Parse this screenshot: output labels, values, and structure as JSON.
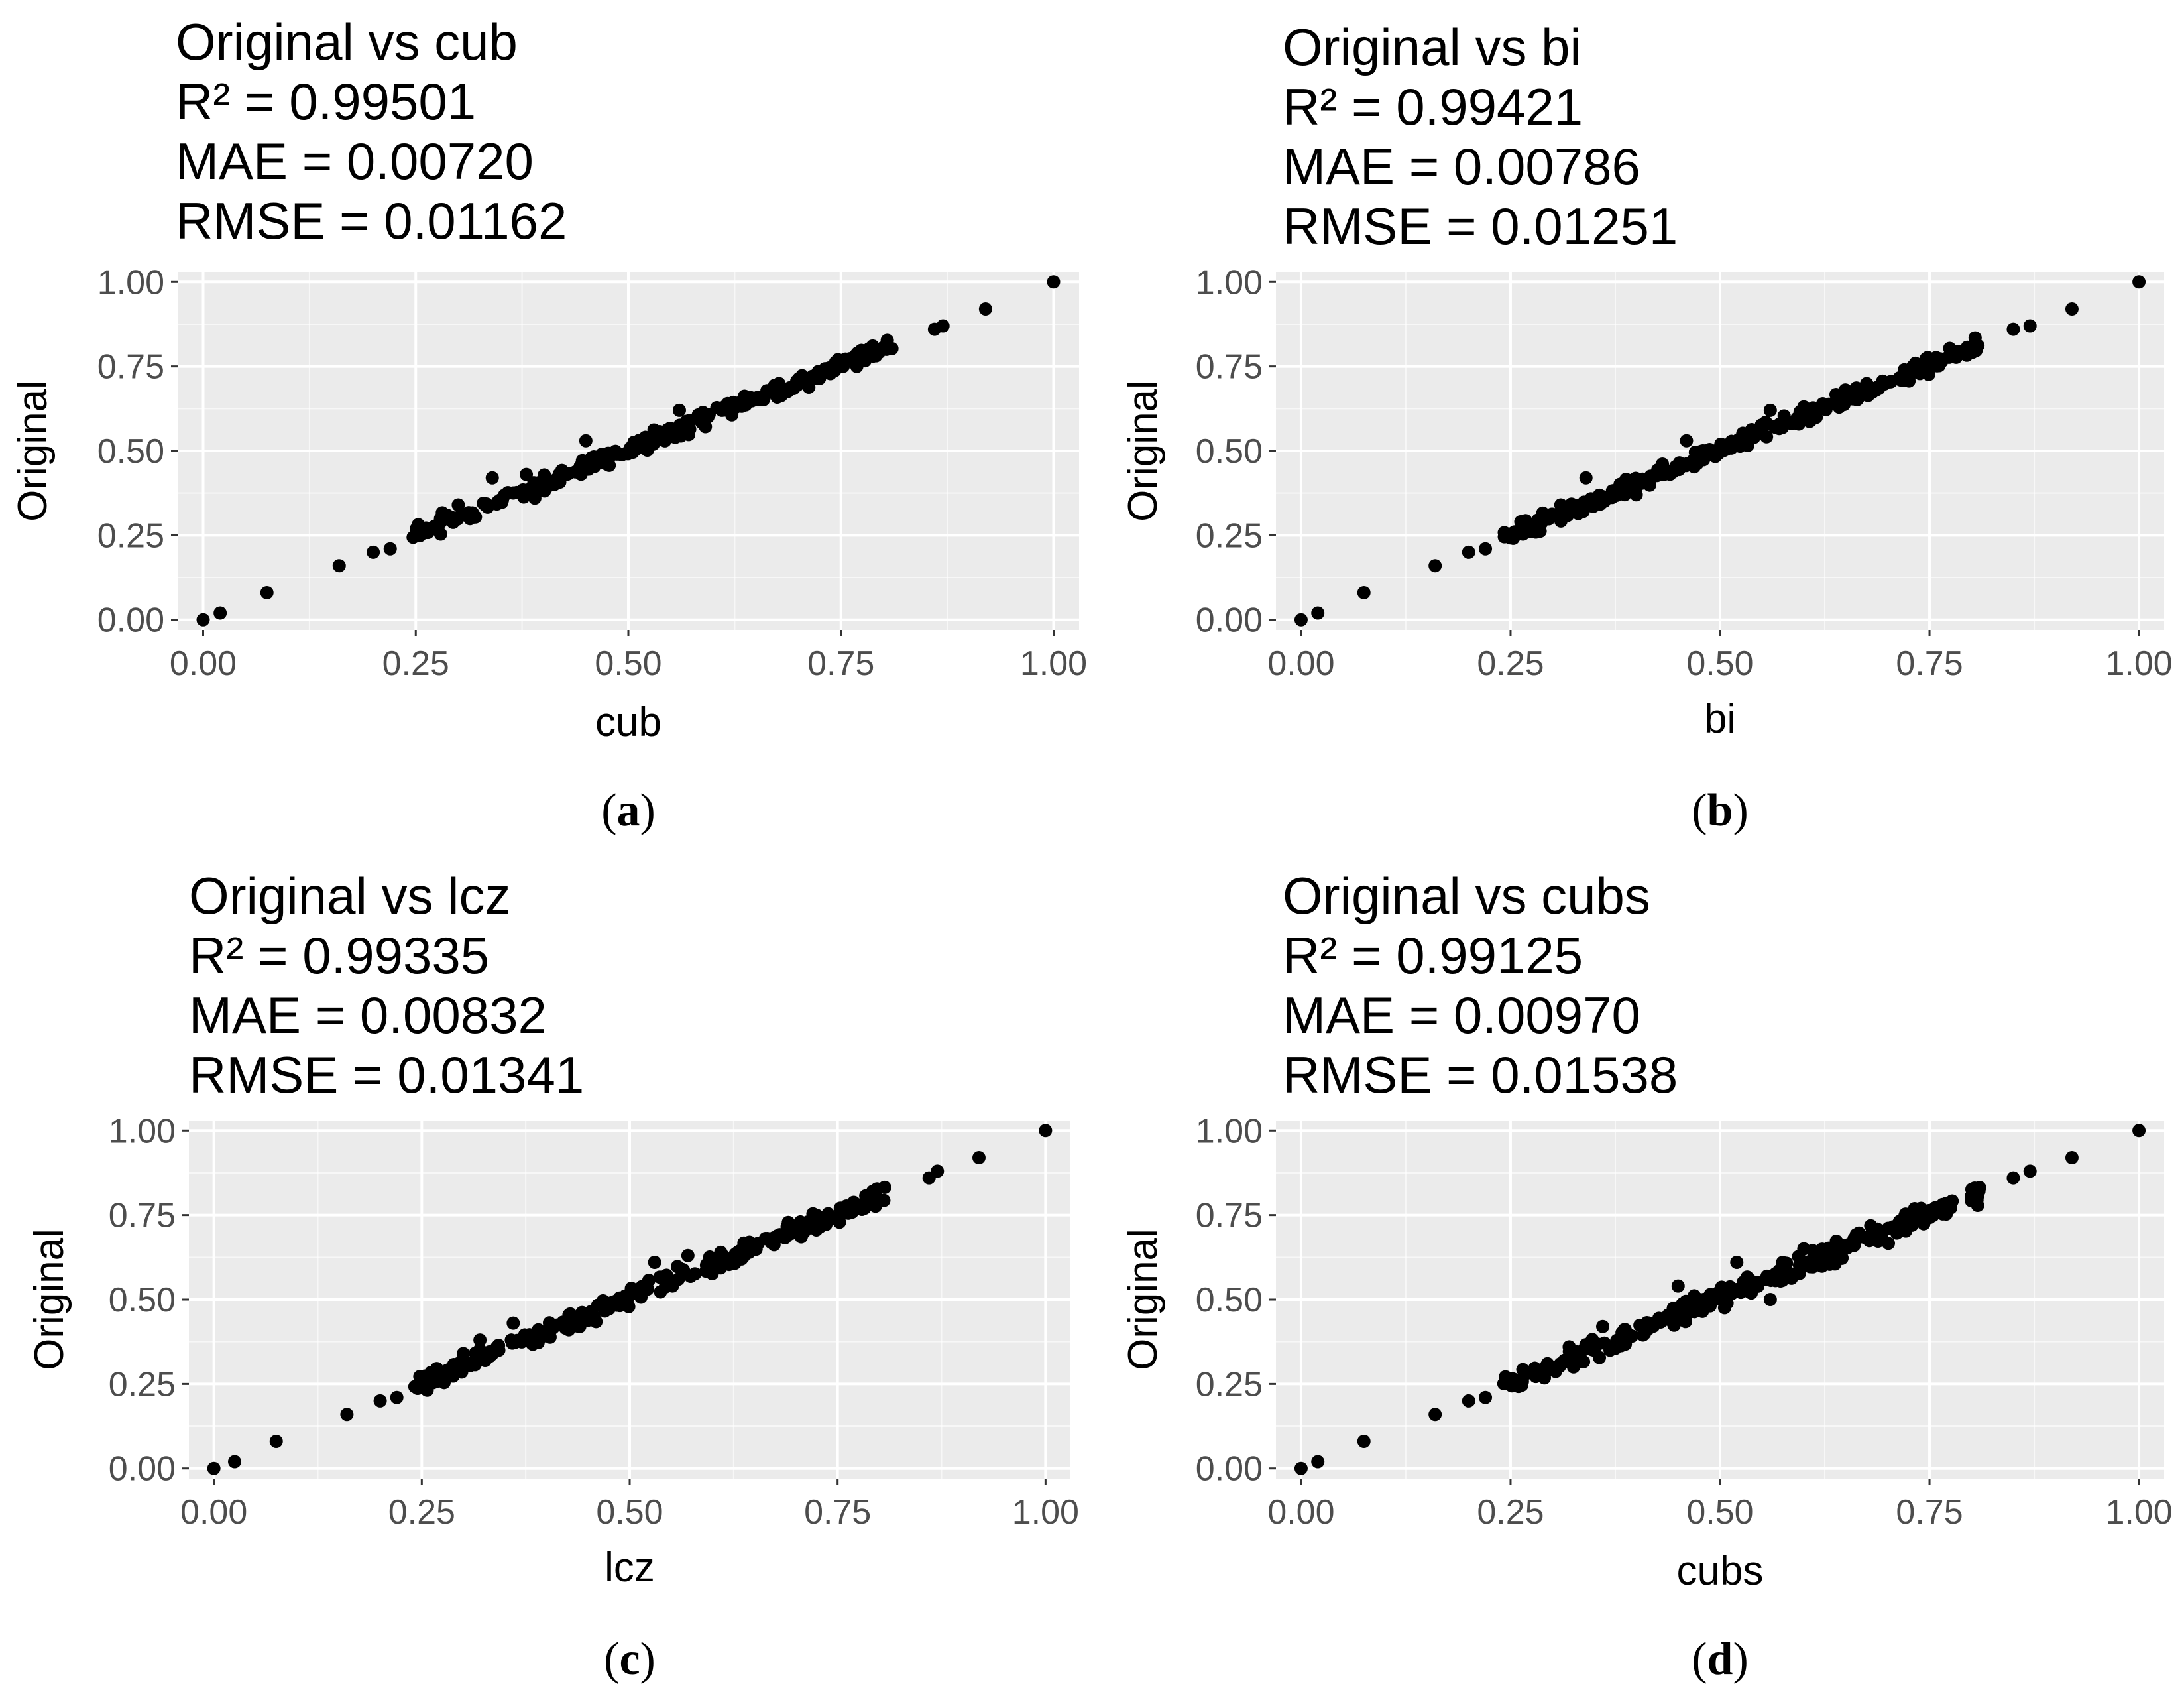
{
  "chart_data": [
    {
      "type": "scatter",
      "title": "Original vs cub",
      "stats": {
        "r2": "R² = 0.99501",
        "mae": "MAE = 0.00720",
        "rmse": "RMSE = 0.01162"
      },
      "xlabel": "cub",
      "ylabel": "Original",
      "xlim": [
        -0.03,
        1.03
      ],
      "ylim": [
        -0.03,
        1.03
      ],
      "ticks": [
        0,
        0.25,
        0.5,
        0.75,
        1.0
      ],
      "tick_labels": [
        "0.00",
        "0.25",
        "0.50",
        "0.75",
        "1.00"
      ],
      "caption_letter": "a",
      "seed": 11,
      "n_points": 260,
      "noise": 0.011,
      "outliers": [
        [
          0.38,
          0.43
        ],
        [
          0.34,
          0.42
        ],
        [
          0.45,
          0.53
        ],
        [
          0.56,
          0.62
        ],
        [
          0.61,
          0.62
        ],
        [
          0.66,
          0.66
        ],
        [
          0.39,
          0.36
        ],
        [
          0.3,
          0.34
        ]
      ],
      "anchor_points": [
        [
          0.0,
          0.0
        ],
        [
          0.02,
          0.02
        ],
        [
          0.075,
          0.08
        ],
        [
          0.16,
          0.16
        ],
        [
          0.2,
          0.2
        ],
        [
          0.22,
          0.21
        ],
        [
          0.86,
          0.86
        ],
        [
          0.87,
          0.87
        ],
        [
          0.92,
          0.92
        ],
        [
          1.0,
          1.0
        ]
      ]
    },
    {
      "type": "scatter",
      "title": "Original vs bi",
      "stats": {
        "r2": "R² = 0.99421",
        "mae": "MAE = 0.00786",
        "rmse": "RMSE = 0.01251"
      },
      "xlabel": "bi",
      "ylabel": "Original",
      "xlim": [
        -0.03,
        1.03
      ],
      "ylim": [
        -0.03,
        1.03
      ],
      "ticks": [
        0,
        0.25,
        0.5,
        0.75,
        1.0
      ],
      "tick_labels": [
        "0.00",
        "0.25",
        "0.50",
        "0.75",
        "1.00"
      ],
      "caption_letter": "b",
      "seed": 23,
      "n_points": 260,
      "noise": 0.012,
      "outliers": [
        [
          0.34,
          0.42
        ],
        [
          0.46,
          0.53
        ],
        [
          0.56,
          0.62
        ],
        [
          0.6,
          0.63
        ],
        [
          0.72,
          0.74
        ],
        [
          0.4,
          0.37
        ],
        [
          0.31,
          0.34
        ]
      ],
      "anchor_points": [
        [
          0.0,
          0.0
        ],
        [
          0.02,
          0.02
        ],
        [
          0.075,
          0.08
        ],
        [
          0.16,
          0.16
        ],
        [
          0.2,
          0.2
        ],
        [
          0.22,
          0.21
        ],
        [
          0.85,
          0.86
        ],
        [
          0.87,
          0.87
        ],
        [
          0.92,
          0.92
        ],
        [
          1.0,
          1.0
        ]
      ]
    },
    {
      "type": "scatter",
      "title": "Original vs lcz",
      "stats": {
        "r2": "R² = 0.99335",
        "mae": "MAE = 0.00832",
        "rmse": "RMSE = 0.01341"
      },
      "xlabel": "lcz",
      "ylabel": "Original",
      "xlim": [
        -0.03,
        1.03
      ],
      "ylim": [
        -0.03,
        1.03
      ],
      "ticks": [
        0,
        0.25,
        0.5,
        0.75,
        1.0
      ],
      "tick_labels": [
        "0.00",
        "0.25",
        "0.50",
        "0.75",
        "1.00"
      ],
      "caption_letter": "c",
      "seed": 37,
      "n_points": 260,
      "noise": 0.013,
      "outliers": [
        [
          0.36,
          0.43
        ],
        [
          0.32,
          0.38
        ],
        [
          0.53,
          0.61
        ],
        [
          0.57,
          0.63
        ],
        [
          0.63,
          0.64
        ],
        [
          0.44,
          0.42
        ],
        [
          0.3,
          0.34
        ]
      ],
      "anchor_points": [
        [
          0.0,
          0.0
        ],
        [
          0.025,
          0.02
        ],
        [
          0.075,
          0.08
        ],
        [
          0.16,
          0.16
        ],
        [
          0.2,
          0.2
        ],
        [
          0.22,
          0.21
        ],
        [
          0.86,
          0.86
        ],
        [
          0.87,
          0.88
        ],
        [
          0.92,
          0.92
        ],
        [
          1.0,
          1.0
        ]
      ]
    },
    {
      "type": "scatter",
      "title": "Original vs cubs",
      "stats": {
        "r2": "R² = 0.99125",
        "mae": "MAE = 0.00970",
        "rmse": "RMSE = 0.01538"
      },
      "xlabel": "cubs",
      "ylabel": "Original",
      "xlim": [
        -0.03,
        1.03
      ],
      "ylim": [
        -0.03,
        1.03
      ],
      "ticks": [
        0,
        0.25,
        0.5,
        0.75,
        1.0
      ],
      "tick_labels": [
        "0.00",
        "0.25",
        "0.50",
        "0.75",
        "1.00"
      ],
      "caption_letter": "d",
      "seed": 51,
      "n_points": 260,
      "noise": 0.015,
      "outliers": [
        [
          0.45,
          0.54
        ],
        [
          0.52,
          0.61
        ],
        [
          0.6,
          0.65
        ],
        [
          0.66,
          0.66
        ],
        [
          0.56,
          0.5
        ],
        [
          0.36,
          0.42
        ],
        [
          0.32,
          0.36
        ],
        [
          0.74,
          0.77
        ]
      ],
      "anchor_points": [
        [
          0.0,
          0.0
        ],
        [
          0.02,
          0.02
        ],
        [
          0.075,
          0.08
        ],
        [
          0.16,
          0.16
        ],
        [
          0.2,
          0.2
        ],
        [
          0.22,
          0.21
        ],
        [
          0.85,
          0.86
        ],
        [
          0.87,
          0.88
        ],
        [
          0.92,
          0.92
        ],
        [
          1.0,
          1.0
        ]
      ]
    }
  ],
  "captions": {
    "open": "(",
    "close": ")"
  },
  "style": {
    "panel_bg": "#ebebeb",
    "grid_major": "#ffffff",
    "point_color": "#000000",
    "tick_text": "#4d4d4d",
    "text": "#000000"
  }
}
